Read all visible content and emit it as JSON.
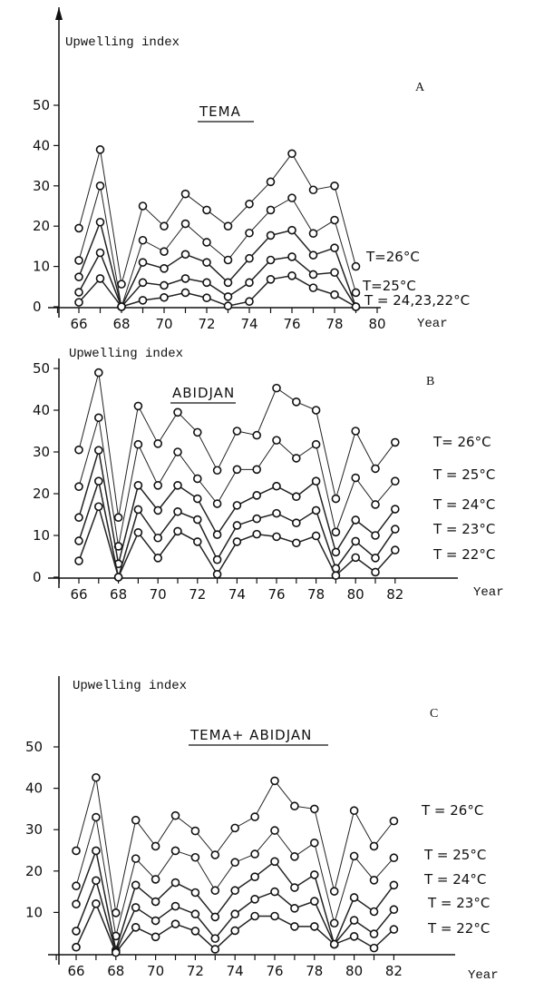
{
  "chart_data": [
    {
      "type": "line",
      "panel_letter": "A",
      "title": "TEMA",
      "ylabel": "Upwelling index",
      "xlabel": "Year",
      "ylim": [
        0,
        50
      ],
      "yticks": [
        0,
        10,
        20,
        30,
        40,
        50
      ],
      "xticks": [
        66,
        68,
        70,
        72,
        74,
        76,
        78,
        80
      ],
      "x": [
        66,
        67,
        68,
        69,
        70,
        71,
        72,
        73,
        74,
        75,
        76,
        77,
        78,
        79
      ],
      "series_labels": [
        "T=26°C",
        "T=25°C",
        "T = 24,23,22°C"
      ],
      "series": [
        {
          "values": [
            19.5,
            39,
            5.6,
            25,
            20,
            28,
            24,
            20,
            25.5,
            31,
            38,
            29,
            30,
            10
          ]
        },
        {
          "values": [
            11.5,
            30,
            0,
            16.5,
            13.7,
            20.6,
            16,
            11.6,
            18.3,
            24,
            27,
            18.2,
            21.5,
            3.5
          ]
        },
        {
          "values": [
            7.4,
            21,
            0,
            11,
            9.5,
            13,
            11,
            6,
            12,
            17.7,
            19,
            12.8,
            14.6,
            0
          ]
        },
        {
          "values": [
            3.6,
            13.4,
            0,
            6,
            5.3,
            7,
            6,
            2.5,
            6,
            11.6,
            12.4,
            8,
            8.5,
            0
          ]
        },
        {
          "values": [
            1.1,
            7,
            0,
            1.6,
            2.3,
            3.5,
            2.2,
            0.2,
            1.3,
            6.8,
            7.7,
            4.7,
            3,
            0
          ]
        }
      ],
      "grid": false
    },
    {
      "type": "line",
      "panel_letter": "B",
      "title": "ABIDJAN",
      "ylabel": "Upwelling index",
      "xlabel": "Year",
      "ylim": [
        0,
        50
      ],
      "yticks": [
        0,
        10,
        20,
        30,
        40,
        50
      ],
      "xticks": [
        66,
        68,
        70,
        72,
        74,
        76,
        78,
        80,
        82
      ],
      "x": [
        66,
        67,
        68,
        69,
        70,
        71,
        72,
        73,
        74,
        75,
        76,
        77,
        78,
        79,
        80,
        81,
        82
      ],
      "series_labels": [
        "T= 26°C",
        "T = 25°C",
        "T = 24°C",
        "T = 23°C",
        "T = 22°C"
      ],
      "series": [
        {
          "name": "T= 26°C",
          "values": [
            30.5,
            49,
            14.3,
            41,
            32,
            39.5,
            34.7,
            25.6,
            35,
            34,
            45.3,
            42,
            40,
            18.8,
            35,
            26,
            32.3
          ]
        },
        {
          "name": "T = 25°C",
          "values": [
            21.7,
            38.2,
            7.4,
            31.8,
            22,
            30,
            23.6,
            17.6,
            25.8,
            25.8,
            32.8,
            28.5,
            31.8,
            10.8,
            23.8,
            17.4,
            23
          ]
        },
        {
          "name": "T = 24°C",
          "values": [
            14.3,
            30.4,
            3.2,
            22,
            16,
            22,
            18.8,
            10.2,
            17.2,
            19.6,
            21.8,
            19.3,
            23,
            6,
            13.7,
            10,
            16.3
          ]
        },
        {
          "name": "T = 23°C",
          "values": [
            8.7,
            23,
            0,
            16.2,
            9.4,
            15.7,
            13.8,
            4.2,
            12.4,
            14,
            15.3,
            13,
            16,
            2.1,
            8.6,
            4.6,
            11.5
          ]
        },
        {
          "name": "T = 22°C",
          "values": [
            3.9,
            16.9,
            0,
            10.7,
            4.6,
            11,
            8.5,
            0.7,
            8.5,
            10.3,
            9.7,
            8.2,
            9.9,
            0.4,
            4.7,
            1.2,
            6.5
          ]
        }
      ],
      "grid": false
    },
    {
      "type": "line",
      "panel_letter": "C",
      "title": "TEMA+ ABIDJAN",
      "ylabel": "Upwelling index",
      "xlabel": "Year",
      "ylim": [
        0,
        50
      ],
      "yticks": [
        10,
        20,
        30,
        40,
        50
      ],
      "xticks": [
        66,
        68,
        70,
        72,
        74,
        76,
        78,
        80,
        82
      ],
      "x": [
        66,
        67,
        68,
        69,
        70,
        71,
        72,
        73,
        74,
        75,
        76,
        77,
        78,
        79,
        80,
        81,
        82
      ],
      "series_labels": [
        "T = 26°C",
        "T = 25°C",
        "T = 24°C",
        "T = 23°C",
        "T = 22°C"
      ],
      "series": [
        {
          "name": "T = 26°C",
          "values": [
            24.9,
            42.6,
            9.9,
            32.3,
            26,
            33.4,
            29.7,
            23.9,
            30.4,
            33.1,
            41.8,
            35.7,
            35,
            15.1,
            34.6,
            26,
            32.1
          ]
        },
        {
          "name": "T = 25°C",
          "values": [
            16.4,
            33,
            4.3,
            23,
            18,
            24.9,
            23.3,
            15.3,
            22.1,
            24.1,
            29.8,
            23.5,
            26.8,
            7.4,
            23.6,
            17.8,
            23.2
          ]
        },
        {
          "name": "T = 24°C",
          "values": [
            12,
            24.9,
            0.9,
            16.6,
            12.6,
            17.2,
            14.8,
            8.9,
            15.3,
            18.6,
            22.3,
            16,
            19.1,
            2.3,
            13.6,
            10.2,
            16.6
          ]
        },
        {
          "name": "T = 23°C",
          "values": [
            5.5,
            17.7,
            0.5,
            11.2,
            8,
            11.5,
            9.6,
            3.7,
            9.6,
            13.2,
            15,
            11,
            12.7,
            2.3,
            8.1,
            4.8,
            10.7
          ]
        },
        {
          "name": "T = 22°C",
          "values": [
            1.6,
            12.1,
            0.3,
            6.4,
            4.1,
            7.2,
            5.5,
            1.1,
            5.6,
            9.1,
            9.1,
            6.6,
            6.6,
            2.3,
            4.2,
            1.4,
            5.9
          ]
        }
      ],
      "grid": false
    }
  ]
}
